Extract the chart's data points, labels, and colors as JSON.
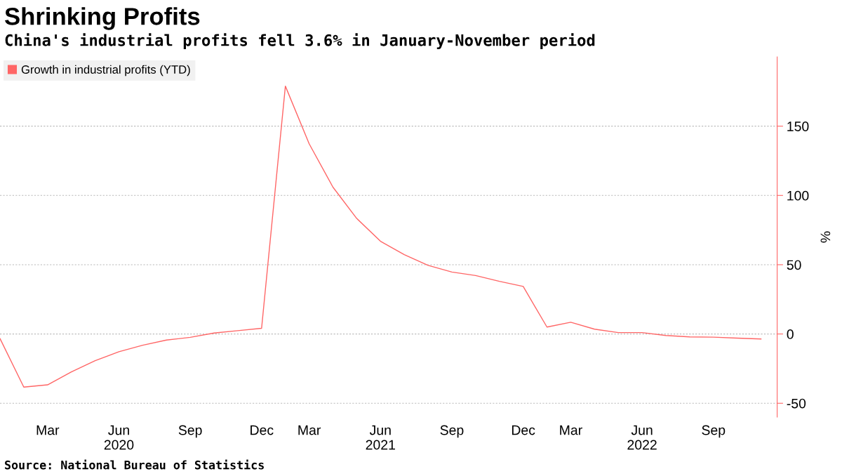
{
  "chart_data": {
    "type": "line",
    "title": "Shrinking Profits",
    "subtitle": "China's industrial profits fell 3.6% in January-November period",
    "categories": [
      null,
      null,
      "Mar",
      null,
      null,
      "Jun\n2020",
      null,
      null,
      "Sep",
      null,
      null,
      "Dec",
      null,
      "Mar",
      null,
      null,
      "Jun\n2021",
      null,
      null,
      "Sep",
      null,
      null,
      "Dec",
      null,
      "Mar",
      null,
      null,
      "Jun\n2022",
      null,
      null,
      "Sep",
      null,
      null
    ],
    "series": [
      {
        "name": "Growth in industrial profits (YTD)",
        "color": "#ff6666",
        "values": [
          -3.3,
          -38.3,
          -36.7,
          -27.4,
          -19.3,
          -12.8,
          -8.1,
          -4.4,
          -2.4,
          0.7,
          2.4,
          4.1,
          178.9,
          137.3,
          106.0,
          83.4,
          66.9,
          57.3,
          49.5,
          44.7,
          42.2,
          38.0,
          34.3,
          5.0,
          8.5,
          3.5,
          1.0,
          1.0,
          -1.1,
          -2.1,
          -2.3,
          -3.0,
          -3.6
        ]
      }
    ],
    "ylabel": "%",
    "ylim": [
      -60,
      200
    ],
    "yticks": [
      -50,
      0,
      50,
      100,
      150
    ],
    "grid": "y",
    "legend": "top left",
    "marker": "none",
    "line_style": "solid",
    "annotations": [
      "Source: National Bureau of Statistics"
    ]
  }
}
